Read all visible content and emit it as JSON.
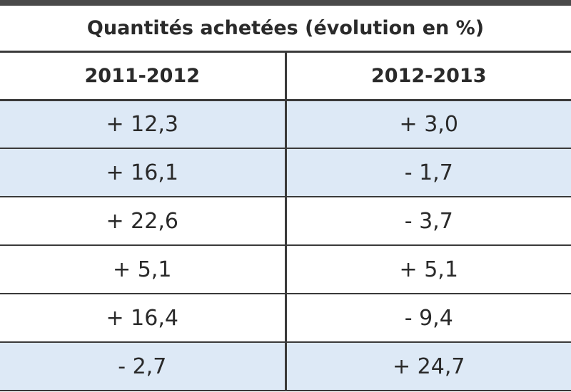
{
  "table": {
    "title": "Quantités achetées (évolution en %)",
    "columns": [
      "2011-2012",
      "2012-2013"
    ],
    "rows": [
      [
        "+ 12,3",
        "+ 3,0"
      ],
      [
        "+ 16,1",
        "- 1,7"
      ],
      [
        "+ 22,6",
        "- 3,7"
      ],
      [
        "+ 5,1",
        "+ 5,1"
      ],
      [
        "+ 16,4",
        "- 9,4"
      ],
      [
        "- 2,7",
        "+ 24,7"
      ]
    ]
  }
}
